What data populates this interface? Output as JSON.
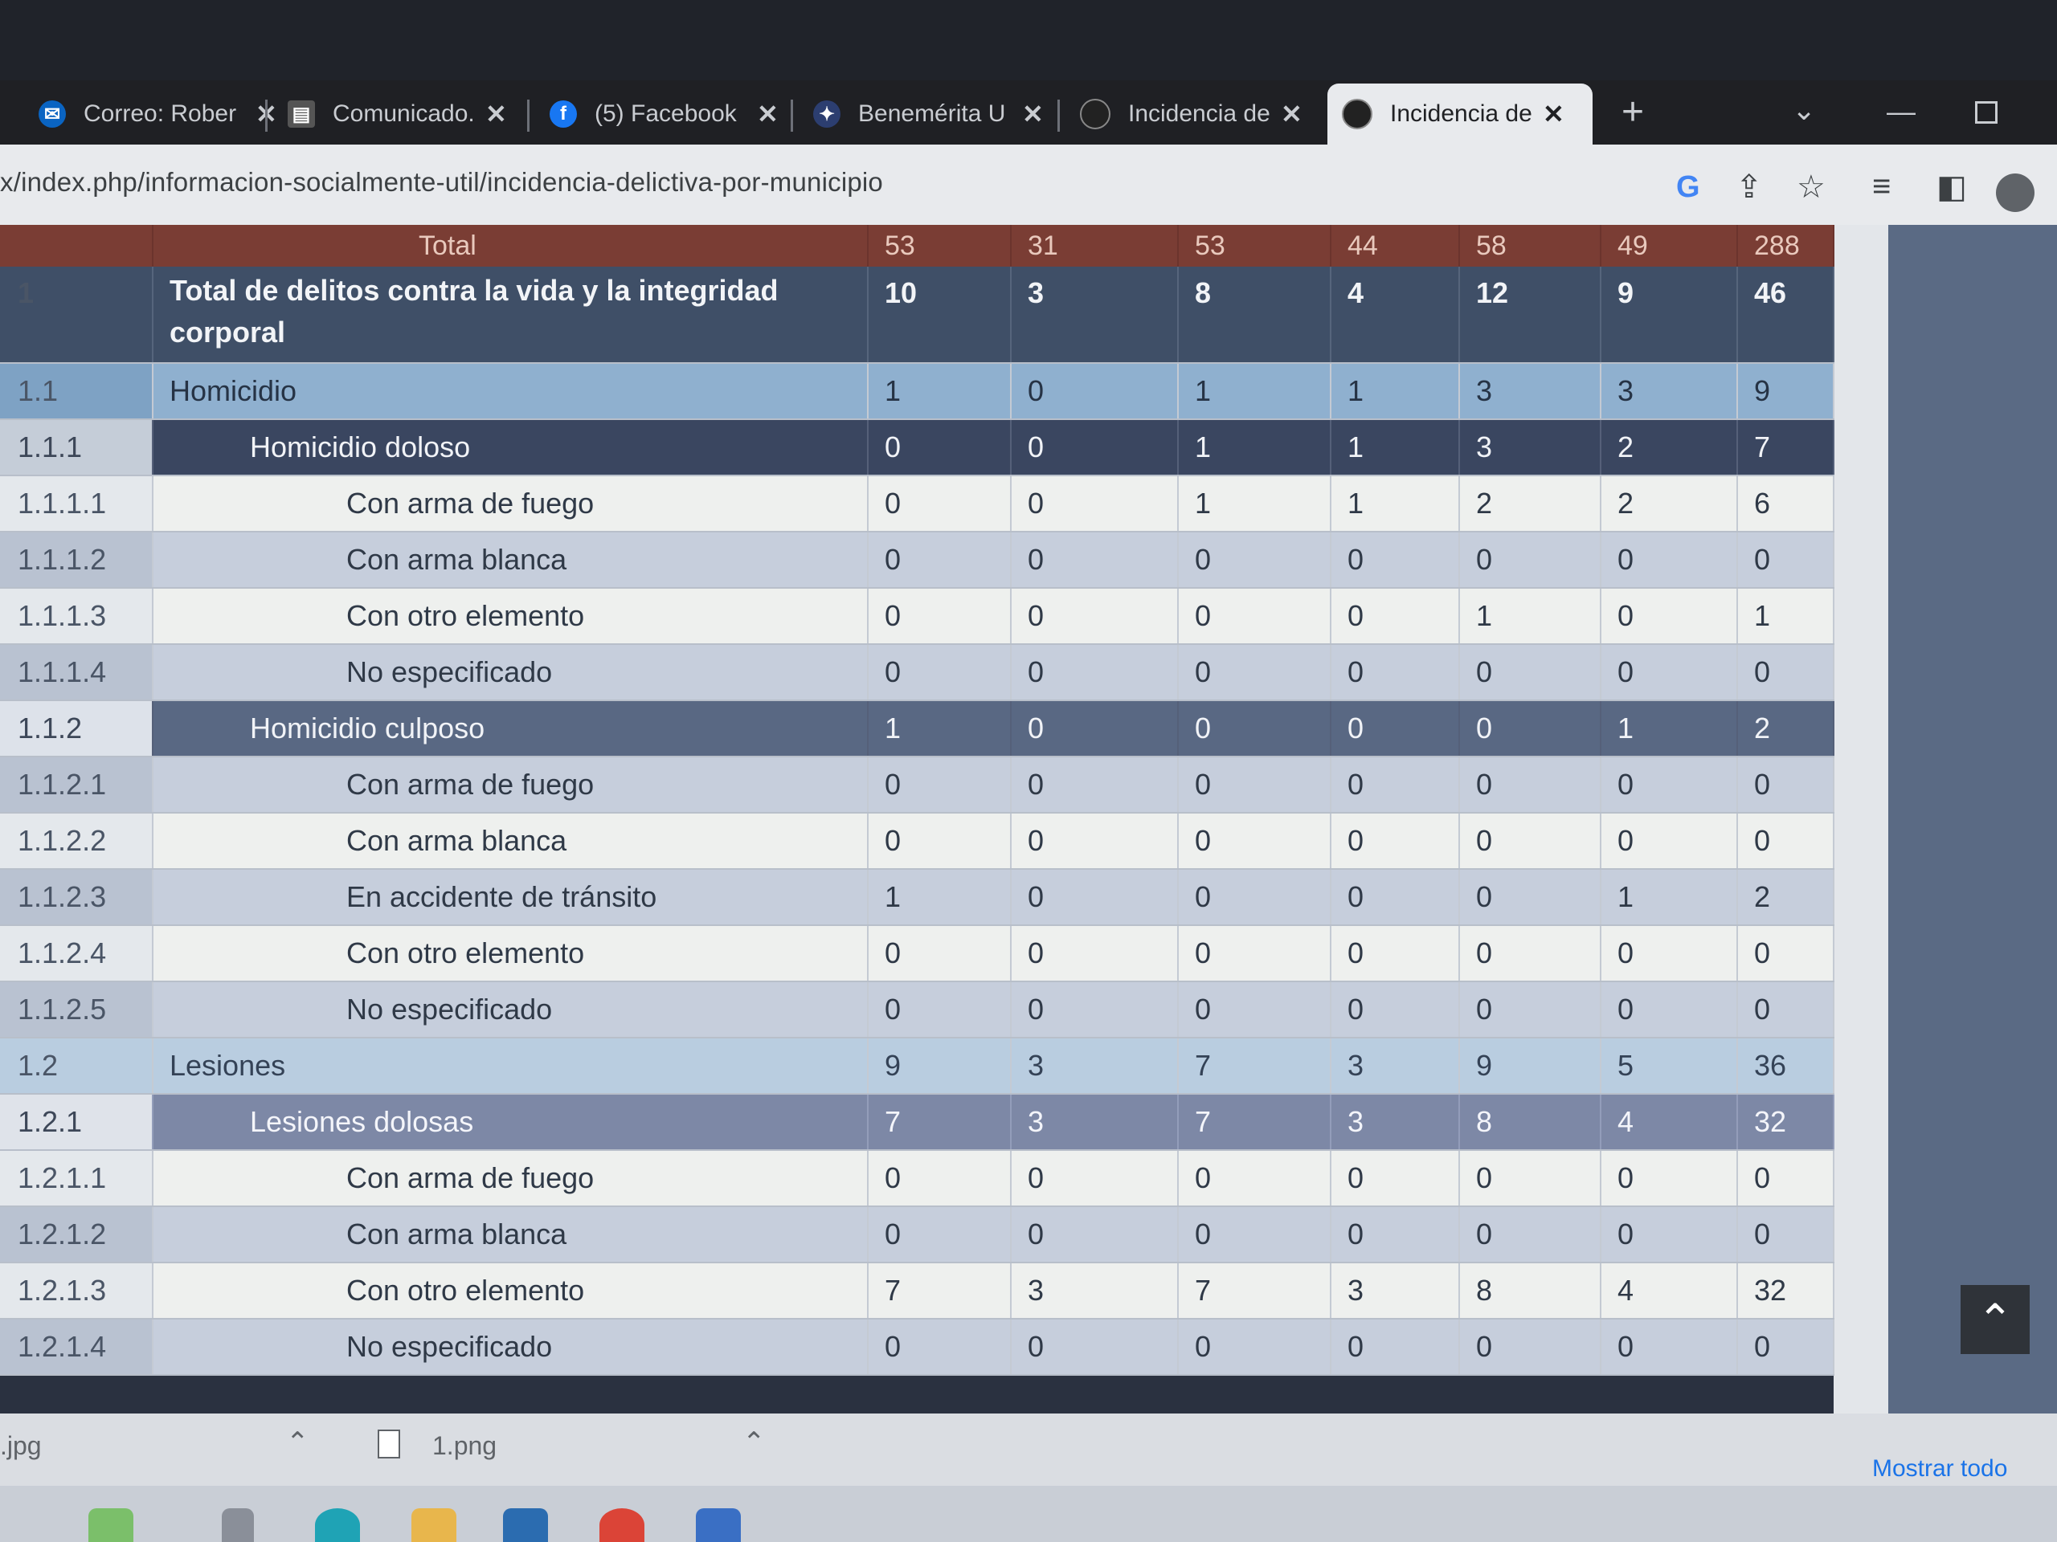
{
  "browser": {
    "tabs": [
      {
        "title": "Correo: Rober",
        "icon": "mail-icon",
        "color": "#0a64c2"
      },
      {
        "title": "Comunicado.",
        "icon": "news-icon",
        "color": "#444"
      },
      {
        "title": "(5) Facebook",
        "icon": "facebook-icon",
        "color": "#1877f2"
      },
      {
        "title": "Benemérita U",
        "icon": "university-icon",
        "color": "#2c3e70"
      },
      {
        "title": "Incidencia de",
        "icon": "site-icon",
        "color": "#222"
      },
      {
        "title": "Incidencia de",
        "icon": "site-icon",
        "color": "#222"
      }
    ],
    "close_glyph": "✕",
    "new_tab": "+",
    "url": "x/index.php/informacion-socialmente-util/incidencia-delictiva-por-municipio"
  },
  "table": {
    "header": {
      "label": "Total",
      "values": [
        "53",
        "31",
        "53",
        "44",
        "58",
        "49",
        "288"
      ]
    },
    "rows": [
      {
        "code": "1",
        "label": "Total de delitos contra la vida y la integridad corporal",
        "values": [
          "10",
          "3",
          "8",
          "4",
          "12",
          "9",
          "46"
        ]
      },
      {
        "code": "1.1",
        "label": "Homicidio",
        "values": [
          "1",
          "0",
          "1",
          "1",
          "3",
          "3",
          "9"
        ]
      },
      {
        "code": "1.1.1",
        "label": "Homicidio doloso",
        "values": [
          "0",
          "0",
          "1",
          "1",
          "3",
          "2",
          "7"
        ]
      },
      {
        "code": "1.1.1.1",
        "label": "Con arma de fuego",
        "values": [
          "0",
          "0",
          "1",
          "1",
          "2",
          "2",
          "6"
        ]
      },
      {
        "code": "1.1.1.2",
        "label": "Con arma blanca",
        "values": [
          "0",
          "0",
          "0",
          "0",
          "0",
          "0",
          "0"
        ]
      },
      {
        "code": "1.1.1.3",
        "label": "Con otro elemento",
        "values": [
          "0",
          "0",
          "0",
          "0",
          "1",
          "0",
          "1"
        ]
      },
      {
        "code": "1.1.1.4",
        "label": "No especificado",
        "values": [
          "0",
          "0",
          "0",
          "0",
          "0",
          "0",
          "0"
        ]
      },
      {
        "code": "1.1.2",
        "label": "Homicidio culposo",
        "values": [
          "1",
          "0",
          "0",
          "0",
          "0",
          "1",
          "2"
        ]
      },
      {
        "code": "1.1.2.1",
        "label": "Con arma de fuego",
        "values": [
          "0",
          "0",
          "0",
          "0",
          "0",
          "0",
          "0"
        ]
      },
      {
        "code": "1.1.2.2",
        "label": "Con arma blanca",
        "values": [
          "0",
          "0",
          "0",
          "0",
          "0",
          "0",
          "0"
        ]
      },
      {
        "code": "1.1.2.3",
        "label": "En accidente de tránsito",
        "values": [
          "1",
          "0",
          "0",
          "0",
          "0",
          "1",
          "2"
        ]
      },
      {
        "code": "1.1.2.4",
        "label": "Con otro elemento",
        "values": [
          "0",
          "0",
          "0",
          "0",
          "0",
          "0",
          "0"
        ]
      },
      {
        "code": "1.1.2.5",
        "label": "No especificado",
        "values": [
          "0",
          "0",
          "0",
          "0",
          "0",
          "0",
          "0"
        ]
      },
      {
        "code": "1.2",
        "label": "Lesiones",
        "values": [
          "9",
          "3",
          "7",
          "3",
          "9",
          "5",
          "36"
        ]
      },
      {
        "code": "1.2.1",
        "label": "Lesiones dolosas",
        "values": [
          "7",
          "3",
          "7",
          "3",
          "8",
          "4",
          "32"
        ]
      },
      {
        "code": "1.2.1.1",
        "label": "Con arma de fuego",
        "values": [
          "0",
          "0",
          "0",
          "0",
          "0",
          "0",
          "0"
        ]
      },
      {
        "code": "1.2.1.2",
        "label": "Con arma blanca",
        "values": [
          "0",
          "0",
          "0",
          "0",
          "0",
          "0",
          "0"
        ]
      },
      {
        "code": "1.2.1.3",
        "label": "Con otro elemento",
        "values": [
          "7",
          "3",
          "7",
          "3",
          "8",
          "4",
          "32"
        ]
      },
      {
        "code": "1.2.1.4",
        "label": "No especificado",
        "values": [
          "0",
          "0",
          "0",
          "0",
          "0",
          "0",
          "0"
        ]
      }
    ]
  },
  "downloads": {
    "items": [
      ".jpg",
      "1.png"
    ],
    "show_all": "Mostrar todo"
  }
}
